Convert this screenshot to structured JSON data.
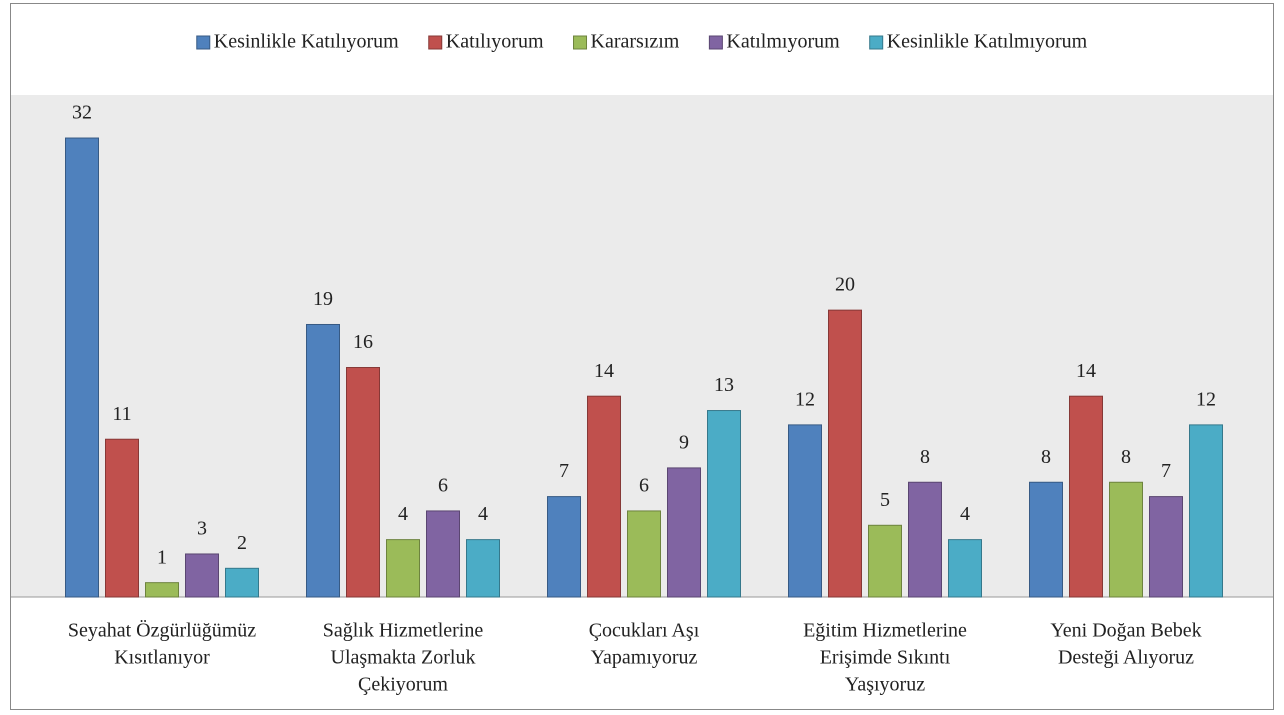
{
  "chart_data": {
    "type": "bar",
    "categories": [
      [
        "Seyahat Özgürlüğümüz",
        "Kısıtlanıyor"
      ],
      [
        "Sağlık Hizmetlerine",
        "Ulaşmakta Zorluk",
        "Çekiyorum"
      ],
      [
        "Çocukları Aşı",
        "Yapamıyoruz"
      ],
      [
        "Eğitim Hizmetlerine",
        "Erişimde Sıkıntı",
        "Yaşıyoruz"
      ],
      [
        "Yeni Doğan Bebek",
        "Desteği Alıyoruz"
      ]
    ],
    "series": [
      {
        "name": "Kesinlikle Katılıyorum",
        "color": "#4f81bd",
        "values": [
          32,
          19,
          7,
          12,
          8
        ]
      },
      {
        "name": "Katılıyorum",
        "color": "#c0504d",
        "values": [
          11,
          16,
          14,
          20,
          14
        ]
      },
      {
        "name": "Kararsızım",
        "color": "#9bbb59",
        "values": [
          1,
          4,
          6,
          5,
          8
        ]
      },
      {
        "name": "Katılmıyorum",
        "color": "#8064a2",
        "values": [
          3,
          6,
          9,
          8,
          7
        ]
      },
      {
        "name": "Kesinlikle Katılmıyorum",
        "color": "#4bacc6",
        "values": [
          2,
          4,
          13,
          4,
          12
        ]
      }
    ],
    "ylim": [
      0,
      35
    ],
    "legend": "top"
  }
}
